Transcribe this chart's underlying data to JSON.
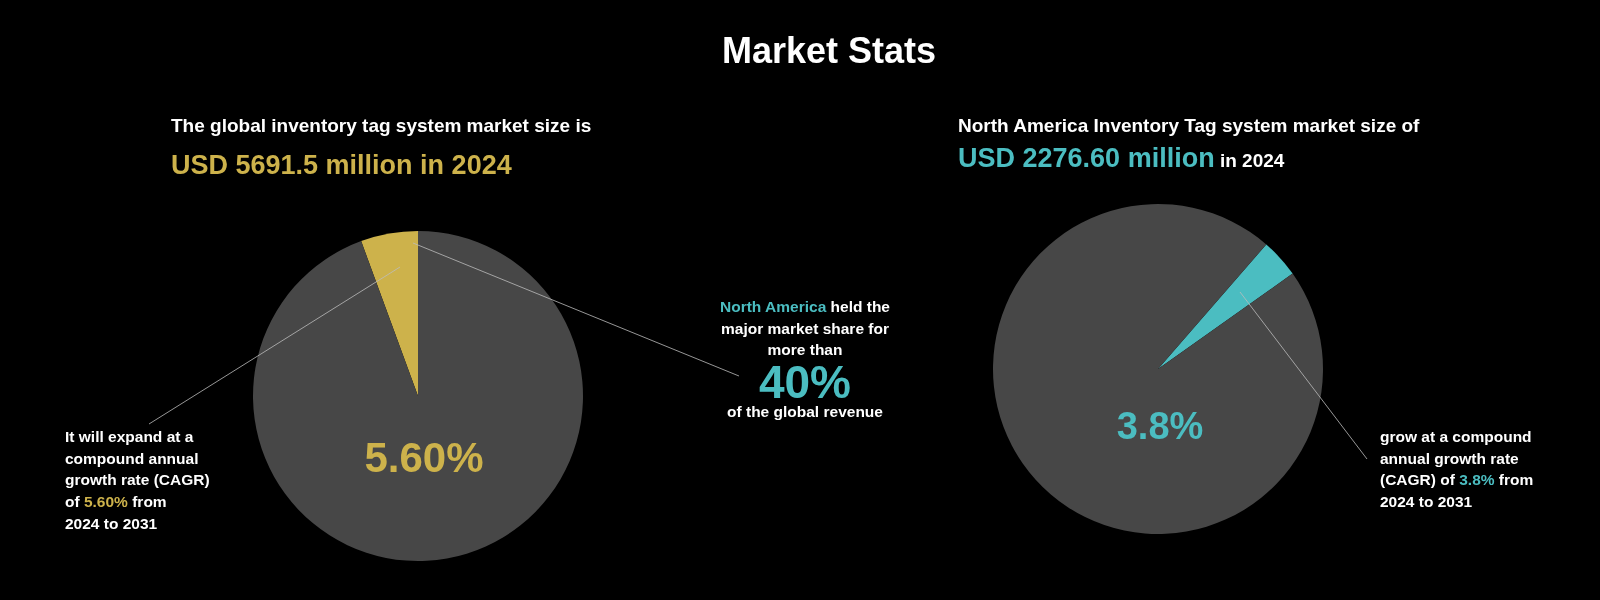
{
  "chart_data": [
    {
      "type": "other",
      "title": "Market Stats"
    },
    {
      "type": "pie",
      "title": "The global inventory tag system market size is",
      "subtitle": "USD 5691.5 million in 2024",
      "categories": [
        null,
        null
      ],
      "values": [
        5.6,
        94.4
      ],
      "colors": [
        "#cdb24b",
        "#474747"
      ],
      "annotations": [
        "North America held the major market share for more than 40% of the global revenue",
        "It will expand at a compound annual growth rate (CAGR) of 5.60% from 2024 to 2031",
        "5.60%"
      ]
    },
    {
      "type": "pie",
      "title": "North America Inventory Tag system market size of",
      "subtitle": "USD 2276.60 million in 2024",
      "categories": [
        null,
        null
      ],
      "values": [
        3.8,
        96.2
      ],
      "colors": [
        "#4bbdc1",
        "#474747"
      ],
      "annotations": [
        "3.8%",
        "grow at a compound annual growth rate (CAGR) of 3.8% from 2024 to 2031"
      ]
    }
  ]
}
